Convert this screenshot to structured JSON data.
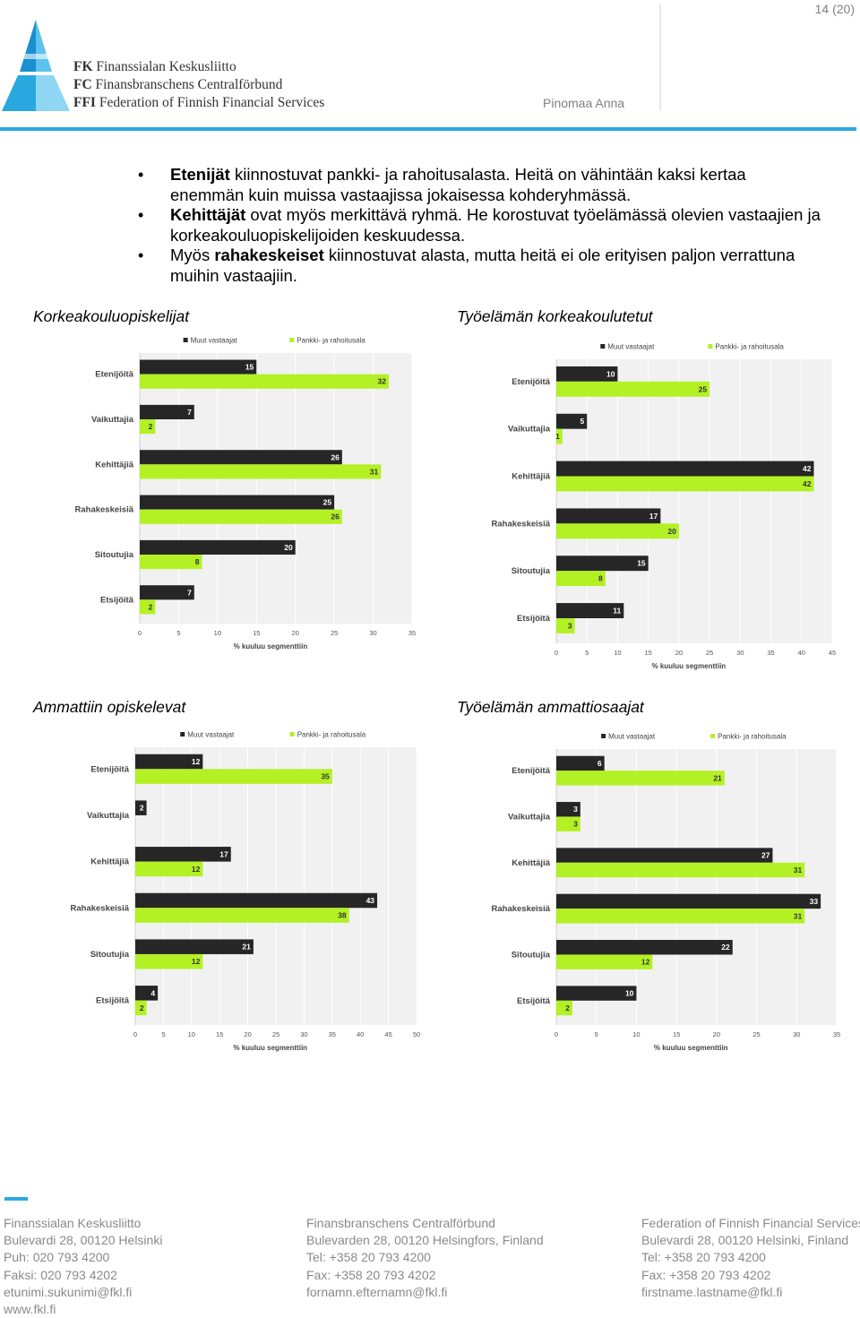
{
  "header": {
    "page_number": "14 (20)",
    "author": "Pinomaa Anna",
    "logo_lines": [
      {
        "abbr": "FK",
        "name": "Finanssialan Keskusliitto"
      },
      {
        "abbr": "FC",
        "name": "Finansbranschens Centralförbund"
      },
      {
        "abbr": "FFI",
        "name": "Federation of Finnish Financial Services"
      }
    ],
    "colors": {
      "accent": "#29a8e0"
    }
  },
  "bullets": [
    {
      "bold": "Etenijät",
      "text": " kiinnostuvat pankki- ja rahoitusalasta. Heitä on vähintään kaksi kertaa enemmän kuin muissa vastaajissa jokaisessa kohderyhmässä."
    },
    {
      "bold": "Kehittäjät",
      "text": " ovat myös merkittävä ryhmä. He korostuvat työelämässä olevien vastaajien ja korkeakouluopiskelijoiden keskuudessa."
    },
    {
      "pre": "Myös ",
      "bold": "rahakeskeiset",
      "text": " kiinnostuvat alasta, mutta heitä ei ole erityisen paljon verrattuna muihin vastaajiin."
    }
  ],
  "chart_data": [
    {
      "type": "bar",
      "title": "Korkeakouluopiskelijat",
      "categories": [
        "Etenijöitä",
        "Vaikuttajia",
        "Kehittäjiä",
        "Rahakeskeisiä",
        "Sitoutujia",
        "Etsijöitä"
      ],
      "series": [
        {
          "name": "Muut vastaajat",
          "values": [
            15,
            7,
            26,
            25,
            20,
            7
          ]
        },
        {
          "name": "Pankki- ja rahoitusala",
          "values": [
            32,
            2,
            31,
            26,
            8,
            2
          ]
        }
      ],
      "xticks": [
        "0",
        "5",
        "10",
        "15",
        "20",
        "25",
        "30",
        "35"
      ],
      "xlim": [
        0,
        35
      ],
      "xlabel": "% kuuluu segmenttiin",
      "legend": "top"
    },
    {
      "type": "bar",
      "title": "Työelämän korkeakoulutetut",
      "categories": [
        "Etenijöitä",
        "Vaikuttajia",
        "Kehittäjiä",
        "Rahakeskeisiä",
        "Sitoutujia",
        "Etsijöitä"
      ],
      "series": [
        {
          "name": "Muut vastaajat",
          "values": [
            10,
            5,
            42,
            17,
            15,
            11
          ]
        },
        {
          "name": "Pankki- ja rahoitusala",
          "values": [
            25,
            1,
            42,
            20,
            8,
            3
          ]
        }
      ],
      "xticks": [
        "0",
        "5",
        "10",
        "15",
        "20",
        "25",
        "30",
        "35",
        "40",
        "45"
      ],
      "xlim": [
        0,
        45
      ],
      "xlabel": "% kuuluu segmenttiin",
      "legend": "top"
    },
    {
      "type": "bar",
      "title": "Ammattiin opiskelevat",
      "categories": [
        "Etenijöitä",
        "Vaikuttajia",
        "Kehittäjiä",
        "Rahakeskeisiä",
        "Sitoutujia",
        "Etsijöitä"
      ],
      "series": [
        {
          "name": "Muut vastaajat",
          "values": [
            12,
            2,
            17,
            43,
            21,
            4
          ]
        },
        {
          "name": "Pankki- ja rahoitusala",
          "values": [
            35,
            0,
            12,
            38,
            12,
            2
          ]
        }
      ],
      "xticks": [
        "0",
        "5",
        "10",
        "15",
        "20",
        "25",
        "30",
        "35",
        "40",
        "45",
        "50"
      ],
      "xlim": [
        0,
        50
      ],
      "xlabel": "% kuuluu segmenttiin",
      "legend": "top"
    },
    {
      "type": "bar",
      "title": "Työelämän ammattiosaajat",
      "categories": [
        "Etenijöitä",
        "Vaikuttajia",
        "Kehittäjiä",
        "Rahakeskeisiä",
        "Sitoutujia",
        "Etsijöitä"
      ],
      "series": [
        {
          "name": "Muut vastaajat",
          "values": [
            6,
            3,
            27,
            33,
            22,
            10
          ]
        },
        {
          "name": "Pankki- ja rahoitusala",
          "values": [
            21,
            3,
            31,
            31,
            12,
            2
          ]
        }
      ],
      "xticks": [
        "0",
        "5",
        "10",
        "15",
        "20",
        "25",
        "30",
        "35"
      ],
      "xlim": [
        0,
        35
      ],
      "xlabel": "% kuuluu segmenttiin",
      "legend": "top"
    }
  ],
  "chart_colors": {
    "dark": "#262626",
    "green": "#b3f125",
    "plot_bg": "#f1f1f1"
  },
  "footer": [
    [
      "Finanssialan Keskusliitto",
      "Bulevardi 28, 00120 Helsinki",
      "Puh: 020 793 4200",
      "Faksi: 020 793 4202",
      "etunimi.sukunimi@fkl.fi",
      "www.fkl.fi"
    ],
    [
      "Finansbranschens Centralförbund",
      "Bulevarden 28, 00120 Helsingfors, Finland",
      "Tel: +358 20 793 4200",
      "Fax: +358 20 793 4202",
      "fornamn.efternamn@fkl.fi"
    ],
    [
      "Federation of Finnish Financial Services",
      "Bulevardi 28, 00120 Helsinki, Finland",
      "Tel: +358 20 793 4200",
      "Fax: +358 20 793 4202",
      "firstname.lastname@fkl.fi"
    ]
  ]
}
